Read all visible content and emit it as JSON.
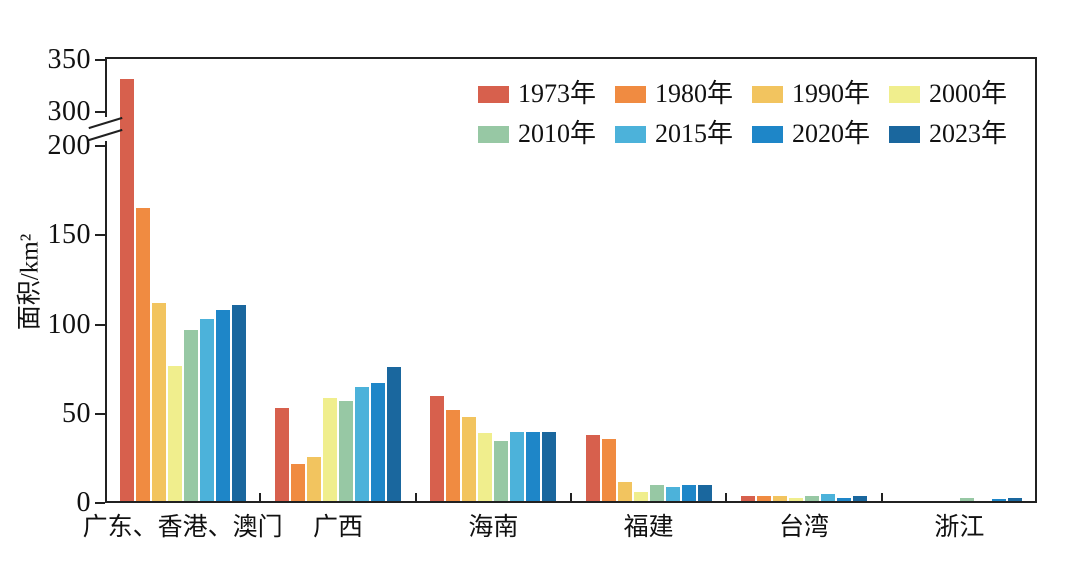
{
  "chart_data": {
    "type": "bar",
    "title": "",
    "ylabel": "面积/km²",
    "categories": [
      "广东、香港、澳门",
      "广西",
      "海南",
      "福建",
      "台湾",
      "浙江"
    ],
    "series": [
      {
        "name": "1973年",
        "color": "#d7604d",
        "values": [
          332,
          53,
          60,
          38,
          4,
          0
        ]
      },
      {
        "name": "1980年",
        "color": "#f08b41",
        "values": [
          165,
          22,
          52,
          36,
          4,
          0
        ]
      },
      {
        "name": "1990年",
        "color": "#f2c45f",
        "values": [
          112,
          26,
          48,
          12,
          4,
          0
        ]
      },
      {
        "name": "2000年",
        "color": "#f0ee8d",
        "values": [
          77,
          59,
          39,
          6,
          3,
          0
        ]
      },
      {
        "name": "2010年",
        "color": "#97c8a4",
        "values": [
          97,
          57,
          35,
          10,
          4,
          3
        ]
      },
      {
        "name": "2015年",
        "color": "#4cb2da",
        "values": [
          103,
          65,
          40,
          9,
          5,
          0
        ]
      },
      {
        "name": "2020年",
        "color": "#1e86c8",
        "values": [
          108,
          67,
          40,
          10,
          3,
          2
        ]
      },
      {
        "name": "2023年",
        "color": "#1a679e",
        "values": [
          111,
          76,
          40,
          10,
          4,
          3
        ]
      }
    ],
    "axis": {
      "y_tick_values": [
        0,
        50,
        100,
        150,
        200,
        300,
        350
      ],
      "y_axis_break": {
        "from": 200,
        "to": 300
      },
      "ylim": [
        0,
        350
      ],
      "grid": false,
      "legend_position": "top-right-inside",
      "legend_rows": 2
    }
  }
}
